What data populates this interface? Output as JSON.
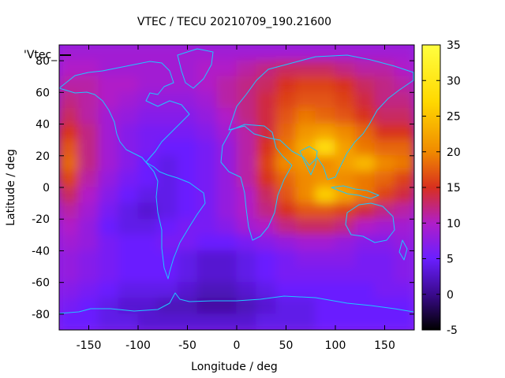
{
  "chart_data": {
    "type": "heatmap",
    "title": "VTEC / TECU 20210709_190.21600",
    "xlabel": "Longitude / deg",
    "ylabel": "Latitude / deg",
    "xlim": [
      -180,
      180
    ],
    "ylim": [
      -90,
      90
    ],
    "x_ticks": [
      -150,
      -100,
      -50,
      0,
      50,
      100,
      150
    ],
    "y_ticks": [
      -80,
      -60,
      -40,
      -20,
      0,
      20,
      40,
      60,
      80
    ],
    "colorbar": {
      "range": [
        -5,
        35
      ],
      "ticks": [
        -5,
        0,
        5,
        10,
        15,
        20,
        25,
        30,
        35
      ],
      "palette": [
        "#000000",
        "#3a0a8c",
        "#6a1fff",
        "#b01ec8",
        "#d8301e",
        "#f08a00",
        "#ffd800",
        "#ffff40"
      ]
    },
    "legend_label": "'Vtec_",
    "grid_lat_step": 10,
    "grid_lon_step": 20,
    "lats": [
      85,
      75,
      65,
      55,
      45,
      35,
      25,
      15,
      5,
      -5,
      -15,
      -25,
      -35,
      -45,
      -55,
      -65,
      -75,
      -85
    ],
    "lons": [
      -170,
      -150,
      -130,
      -110,
      -90,
      -70,
      -50,
      -30,
      -10,
      10,
      30,
      50,
      70,
      90,
      110,
      130,
      150,
      170
    ],
    "values": [
      [
        9,
        9,
        9,
        9,
        9,
        9,
        9,
        9,
        9,
        9,
        9,
        9,
        9,
        9,
        9,
        9,
        9,
        9
      ],
      [
        10,
        10,
        9,
        9,
        9,
        9,
        9,
        10,
        10,
        11,
        12,
        13,
        13,
        13,
        12,
        11,
        11,
        10
      ],
      [
        11,
        11,
        10,
        10,
        9,
        9,
        9,
        10,
        11,
        12,
        13,
        15,
        16,
        16,
        15,
        13,
        12,
        11
      ],
      [
        12,
        11,
        10,
        9,
        8,
        8,
        8,
        9,
        11,
        12,
        14,
        16,
        17,
        17,
        16,
        14,
        12,
        12
      ],
      [
        13,
        11,
        9,
        8,
        7,
        7,
        7,
        8,
        10,
        12,
        14,
        17,
        19,
        18,
        17,
        15,
        13,
        13
      ],
      [
        15,
        12,
        9,
        7,
        6,
        6,
        6,
        7,
        9,
        11,
        14,
        18,
        21,
        22,
        20,
        18,
        15,
        15
      ],
      [
        17,
        12,
        9,
        7,
        6,
        5,
        5,
        6,
        8,
        11,
        15,
        19,
        23,
        28,
        22,
        19,
        18,
        18
      ],
      [
        18,
        12,
        9,
        7,
        5,
        4,
        5,
        6,
        8,
        11,
        16,
        20,
        21,
        20,
        22,
        24,
        20,
        19
      ],
      [
        16,
        11,
        8,
        6,
        5,
        4,
        5,
        6,
        8,
        11,
        15,
        18,
        20,
        21,
        20,
        19,
        18,
        16
      ],
      [
        13,
        10,
        7,
        5,
        4,
        4,
        5,
        6,
        8,
        10,
        13,
        17,
        20,
        26,
        22,
        19,
        16,
        14
      ],
      [
        11,
        9,
        6,
        4,
        3,
        4,
        5,
        6,
        8,
        10,
        12,
        15,
        17,
        17,
        16,
        14,
        12,
        11
      ],
      [
        10,
        8,
        5,
        4,
        4,
        5,
        6,
        6,
        7,
        9,
        10,
        12,
        13,
        13,
        12,
        10,
        9,
        9
      ],
      [
        9,
        8,
        6,
        5,
        5,
        6,
        6,
        5,
        5,
        6,
        7,
        8,
        9,
        9,
        8,
        7,
        7,
        8
      ],
      [
        8,
        7,
        6,
        5,
        5,
        5,
        4,
        3,
        3,
        4,
        5,
        6,
        7,
        7,
        7,
        6,
        6,
        7
      ],
      [
        8,
        7,
        6,
        5,
        5,
        5,
        4,
        3,
        3,
        4,
        5,
        6,
        6,
        6,
        6,
        6,
        6,
        7
      ],
      [
        7,
        6,
        5,
        4,
        4,
        4,
        3,
        2,
        2,
        3,
        4,
        5,
        5,
        5,
        5,
        5,
        6,
        6
      ],
      [
        6,
        5,
        4,
        3,
        3,
        2,
        2,
        1,
        1,
        2,
        3,
        4,
        4,
        5,
        5,
        5,
        5,
        5
      ],
      [
        5,
        5,
        4,
        4,
        3,
        3,
        3,
        3,
        3,
        3,
        4,
        4,
        4,
        5,
        5,
        5,
        5,
        5
      ]
    ]
  }
}
